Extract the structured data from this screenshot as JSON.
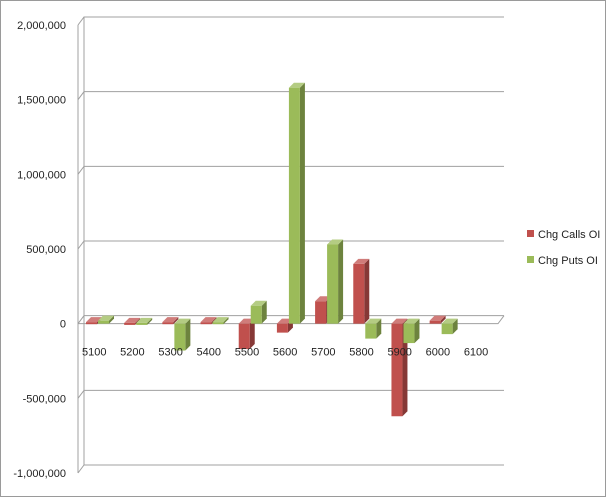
{
  "chart_data": {
    "type": "bar",
    "categories": [
      "5100",
      "5200",
      "5300",
      "5400",
      "5500",
      "5600",
      "5700",
      "5800",
      "5900",
      "6000",
      "6100"
    ],
    "series": [
      {
        "name": "Chg Calls OI",
        "color": "#c0504d",
        "values": [
          10000,
          5000,
          10000,
          10000,
          -170000,
          -60000,
          150000,
          400000,
          -620000,
          20000,
          0
        ]
      },
      {
        "name": "Chg Puts OI",
        "color": "#9bbb59",
        "values": [
          20000,
          5000,
          -180000,
          10000,
          120000,
          1580000,
          530000,
          -100000,
          -130000,
          -70000,
          0
        ]
      }
    ],
    "y_ticks": [
      "2,000,000",
      "1,500,000",
      "1,000,000",
      "500,000",
      "0",
      "-500,000",
      "-1,000,000"
    ],
    "ylim": [
      -1000000,
      2000000
    ],
    "grid": true,
    "legend_position": "right"
  }
}
